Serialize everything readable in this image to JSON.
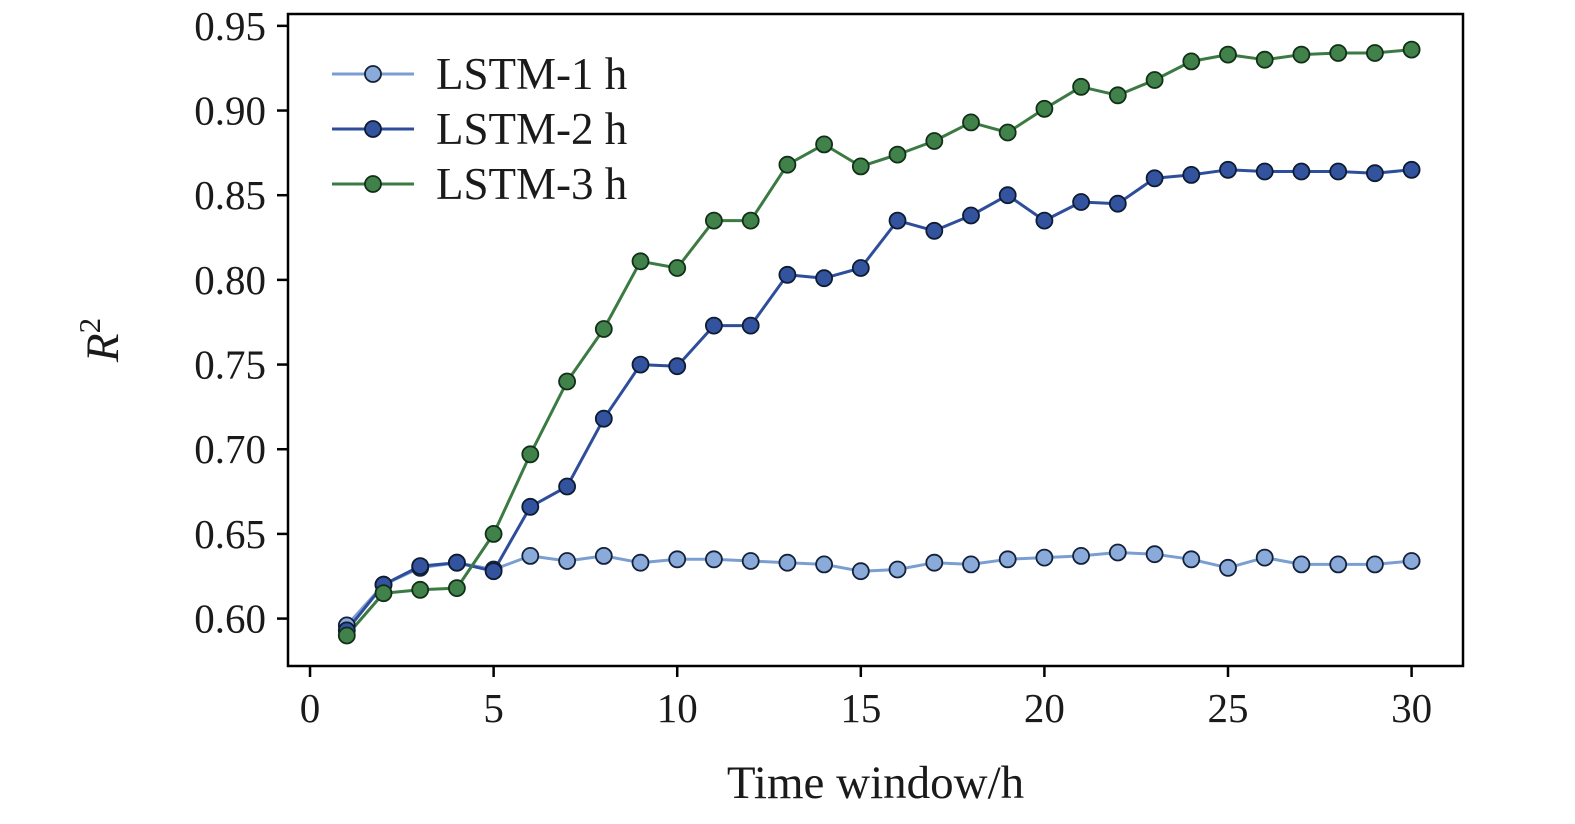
{
  "colors": {
    "background": "#ffffff",
    "axis": "#000000",
    "text": "#1a1a1a"
  },
  "chart_data": {
    "type": "line",
    "title": "",
    "xlabel": "Time window/h",
    "ylabel_base": "R",
    "ylabel_sup": "2",
    "xlim": [
      -0.6,
      31.4
    ],
    "ylim": [
      0.572,
      0.957
    ],
    "x_ticks": [
      0,
      5,
      10,
      15,
      20,
      25,
      30
    ],
    "y_ticks": [
      0.6,
      0.65,
      0.7,
      0.75,
      0.8,
      0.85,
      0.9,
      0.95
    ],
    "grid": false,
    "legend_position": "upper left",
    "x": [
      1,
      2,
      3,
      4,
      5,
      6,
      7,
      8,
      9,
      10,
      11,
      12,
      13,
      14,
      15,
      16,
      17,
      18,
      19,
      20,
      21,
      22,
      23,
      24,
      25,
      26,
      27,
      28,
      29,
      30
    ],
    "series": [
      {
        "name": "LSTM-1 h",
        "line_color": "#7b9ed2",
        "marker_color": "#8aabd9",
        "marker_edge": "#14213a",
        "values": [
          0.596,
          0.62,
          0.63,
          0.633,
          0.629,
          0.637,
          0.634,
          0.637,
          0.633,
          0.635,
          0.635,
          0.634,
          0.633,
          0.632,
          0.628,
          0.629,
          0.633,
          0.632,
          0.635,
          0.636,
          0.637,
          0.639,
          0.638,
          0.635,
          0.63,
          0.636,
          0.632,
          0.632,
          0.632,
          0.634
        ]
      },
      {
        "name": "LSTM-2 h",
        "line_color": "#2e4e9b",
        "marker_color": "#33539f",
        "marker_edge": "#0d1b33",
        "values": [
          0.593,
          0.62,
          0.631,
          0.633,
          0.628,
          0.666,
          0.678,
          0.718,
          0.75,
          0.749,
          0.773,
          0.773,
          0.803,
          0.801,
          0.807,
          0.835,
          0.829,
          0.838,
          0.85,
          0.835,
          0.846,
          0.845,
          0.86,
          0.862,
          0.865,
          0.864,
          0.864,
          0.864,
          0.863,
          0.865
        ]
      },
      {
        "name": "LSTM-3 h",
        "line_color": "#3b7a43",
        "marker_color": "#41824a",
        "marker_edge": "#123018",
        "values": [
          0.59,
          0.615,
          0.617,
          0.618,
          0.65,
          0.697,
          0.74,
          0.771,
          0.811,
          0.807,
          0.835,
          0.835,
          0.868,
          0.88,
          0.867,
          0.874,
          0.882,
          0.893,
          0.887,
          0.901,
          0.914,
          0.909,
          0.918,
          0.929,
          0.933,
          0.93,
          0.933,
          0.934,
          0.934,
          0.936
        ]
      }
    ]
  }
}
